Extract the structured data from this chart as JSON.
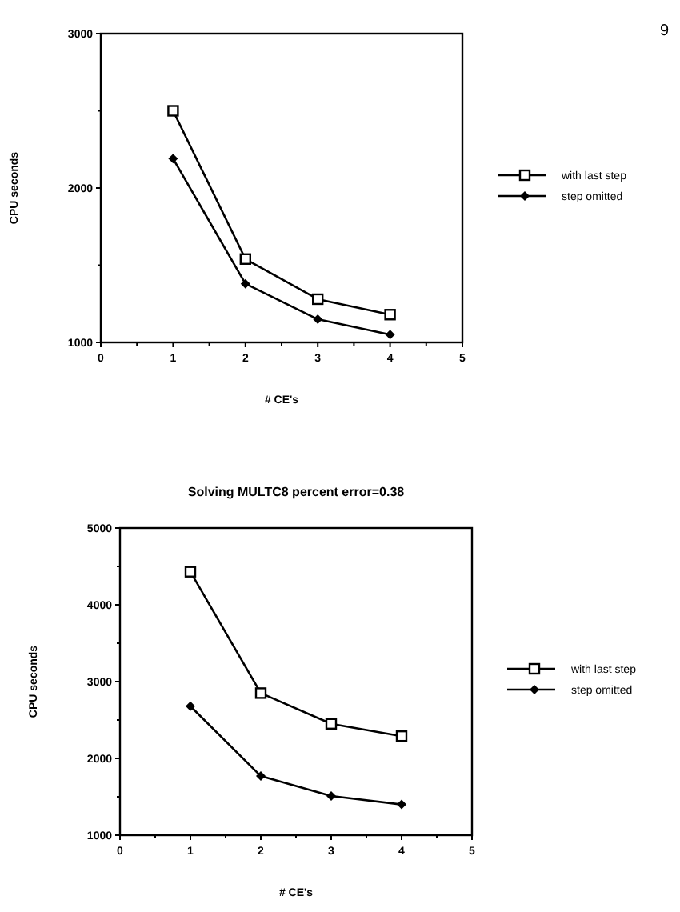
{
  "chart_data": [
    {
      "type": "line",
      "xlabel": "# CE's",
      "ylabel": "CPU seconds",
      "annotations": [
        "9"
      ],
      "x": [
        1,
        2,
        3,
        4
      ],
      "series": [
        {
          "name": "with last step",
          "color": "#000000",
          "marker": "square",
          "values": [
            2500,
            1540,
            1280,
            1180
          ]
        },
        {
          "name": "step omitted",
          "color": "#000000",
          "marker": "diamond",
          "values": [
            2190,
            1380,
            1150,
            1050
          ]
        }
      ],
      "xlim": [
        0,
        5
      ],
      "xticks": [
        0,
        {
          "value": 0.5,
          "label": null
        },
        1,
        {
          "value": 1.5,
          "label": null
        },
        2,
        {
          "value": 2.5,
          "label": null
        },
        3,
        {
          "value": 3.5,
          "label": null
        },
        4,
        {
          "value": 4.5,
          "label": null
        },
        5
      ],
      "ylim": [
        1000,
        3000
      ],
      "yticks": [
        1000,
        {
          "value": 1500,
          "label": null
        },
        2000,
        {
          "value": 2500,
          "label": null
        },
        3000
      ],
      "legend": "right",
      "grid": false,
      "line_style": "solid"
    },
    {
      "type": "line",
      "title": "Solving  MULTC8  percent  error=0.38",
      "xlabel": "# CE's",
      "ylabel": "CPU seconds",
      "x": [
        1,
        2,
        3,
        4
      ],
      "series": [
        {
          "name": "with last step",
          "color": "#000000",
          "marker": "square",
          "values": [
            4430,
            2850,
            2450,
            2290
          ]
        },
        {
          "name": "step omitted",
          "color": "#000000",
          "marker": "diamond",
          "values": [
            2680,
            1770,
            1510,
            1400
          ]
        }
      ],
      "xlim": [
        0,
        5
      ],
      "xticks": [
        0,
        {
          "value": 0.5,
          "label": null
        },
        1,
        {
          "value": 1.5,
          "label": null
        },
        2,
        {
          "value": 2.5,
          "label": null
        },
        3,
        {
          "value": 3.5,
          "label": null
        },
        4,
        {
          "value": 4.5,
          "label": null
        },
        5
      ],
      "ylim": [
        1000,
        5000
      ],
      "yticks": [
        1000,
        {
          "value": 1500,
          "label": null
        },
        2000,
        {
          "value": 2500,
          "label": null
        },
        3000,
        {
          "value": 3500,
          "label": null
        },
        4000,
        {
          "value": 4500,
          "label": null
        },
        5000
      ],
      "legend": "right",
      "grid": false,
      "line_style": "solid"
    }
  ]
}
